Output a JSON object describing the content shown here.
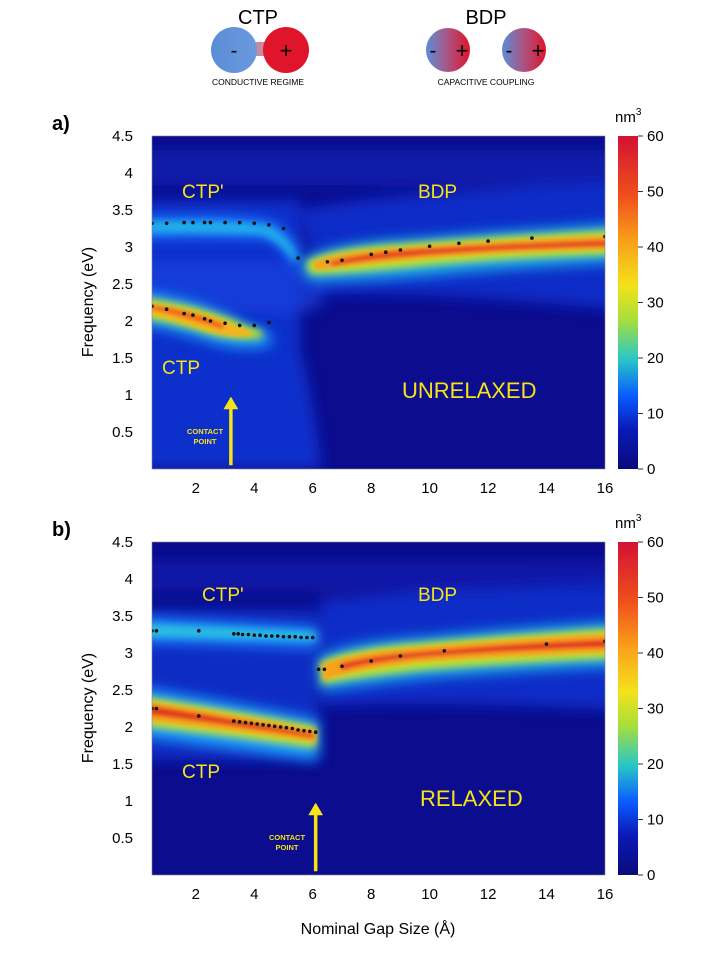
{
  "header": {
    "ctp": {
      "title": "CTP",
      "minus": "-",
      "plus": "+",
      "caption": "CONDUCTIVE REGIME"
    },
    "bdp": {
      "title": "BDP",
      "minus": "-",
      "plus": "+",
      "caption": "CAPACITIVE COUPLING"
    }
  },
  "colors": {
    "negative_charge": "#5b8dd6",
    "positive_charge": "#e0142a",
    "annotation": "#f7e416",
    "marker": "#111111"
  },
  "chart_data": [
    {
      "type": "heatmap",
      "panel_label": "a)",
      "title": "",
      "xlabel": "",
      "ylabel": "Frequency (eV)",
      "xlim": [
        0.5,
        16
      ],
      "ylim": [
        0,
        4.5
      ],
      "xticks": [
        2,
        4,
        6,
        8,
        10,
        12,
        14,
        16
      ],
      "yticks": [
        0.5,
        1,
        1.5,
        2,
        2.5,
        3,
        3.5,
        4,
        4.5
      ],
      "colorbar": {
        "unit": "nm",
        "unit_exponent": "3",
        "min": 0,
        "max": 60,
        "ticks": [
          0,
          10,
          20,
          30,
          40,
          50,
          60
        ]
      },
      "regime_labels": {
        "ctp_prime": "CTP'",
        "bdp": "BDP",
        "ctp": "CTP",
        "state": "UNRELAXED"
      },
      "contact_point": {
        "label_line1": "CONTACT",
        "label_line2": "POINT",
        "x": 3.2
      },
      "series": [
        {
          "points": [
            [
              0.5,
              3.32
            ],
            [
              1,
              3.32
            ],
            [
              1.6,
              3.33
            ],
            [
              1.9,
              3.33
            ],
            [
              2.3,
              3.33
            ],
            [
              2.5,
              3.33
            ],
            [
              3,
              3.33
            ],
            [
              3.5,
              3.33
            ],
            [
              4,
              3.32
            ],
            [
              4.5,
              3.3
            ],
            [
              5,
              3.25
            ],
            [
              5.5,
              2.85
            ],
            [
              6.5,
              2.8
            ],
            [
              7,
              2.82
            ],
            [
              8,
              2.9
            ],
            [
              8.5,
              2.93
            ],
            [
              9,
              2.96
            ],
            [
              10,
              3.01
            ],
            [
              11,
              3.05
            ],
            [
              12,
              3.08
            ],
            [
              13.5,
              3.12
            ],
            [
              16,
              3.14
            ]
          ]
        },
        {
          "points": [
            [
              0.5,
              2.2
            ],
            [
              1,
              2.16
            ],
            [
              1.6,
              2.1
            ],
            [
              1.9,
              2.08
            ],
            [
              2.3,
              2.03
            ],
            [
              2.5,
              2.0
            ],
            [
              3,
              1.97
            ],
            [
              3.5,
              1.94
            ],
            [
              4,
              1.94
            ],
            [
              4.5,
              1.98
            ]
          ]
        }
      ]
    },
    {
      "type": "heatmap",
      "panel_label": "b)",
      "title": "",
      "xlabel": "Nominal Gap Size (Å)",
      "ylabel": "Frequency (eV)",
      "xlim": [
        0.5,
        16
      ],
      "ylim": [
        0,
        4.5
      ],
      "xticks": [
        2,
        4,
        6,
        8,
        10,
        12,
        14,
        16
      ],
      "yticks": [
        0.5,
        1,
        1.5,
        2,
        2.5,
        3,
        3.5,
        4,
        4.5
      ],
      "colorbar": {
        "unit": "nm",
        "unit_exponent": "3",
        "min": 0,
        "max": 60,
        "ticks": [
          0,
          10,
          20,
          30,
          40,
          50,
          60
        ]
      },
      "regime_labels": {
        "ctp_prime": "CTP'",
        "bdp": "BDP",
        "ctp": "CTP",
        "state": "RELAXED"
      },
      "contact_point": {
        "label_line1": "CONTACT",
        "label_line2": "POINT",
        "x": 6.1
      },
      "series": [
        {
          "points": [
            [
              0.5,
              3.3
            ],
            [
              0.65,
              3.3
            ],
            [
              2.1,
              3.3
            ],
            [
              3.3,
              3.26
            ],
            [
              3.45,
              3.26
            ],
            [
              3.6,
              3.25
            ],
            [
              3.8,
              3.25
            ],
            [
              4,
              3.24
            ],
            [
              4.2,
              3.24
            ],
            [
              4.4,
              3.23
            ],
            [
              4.6,
              3.23
            ],
            [
              4.8,
              3.23
            ],
            [
              5,
              3.22
            ],
            [
              5.2,
              3.22
            ],
            [
              5.4,
              3.22
            ],
            [
              5.6,
              3.21
            ],
            [
              5.8,
              3.21
            ],
            [
              6,
              3.21
            ],
            [
              6.2,
              2.78
            ],
            [
              6.4,
              2.78
            ],
            [
              7,
              2.82
            ],
            [
              8,
              2.89
            ],
            [
              9,
              2.96
            ],
            [
              10.5,
              3.03
            ],
            [
              14,
              3.12
            ],
            [
              16,
              3.16
            ]
          ]
        },
        {
          "points": [
            [
              0.5,
              2.25
            ],
            [
              0.65,
              2.25
            ],
            [
              2.1,
              2.15
            ],
            [
              3.3,
              2.08
            ],
            [
              3.5,
              2.07
            ],
            [
              3.7,
              2.06
            ],
            [
              3.9,
              2.05
            ],
            [
              4.1,
              2.04
            ],
            [
              4.3,
              2.03
            ],
            [
              4.5,
              2.02
            ],
            [
              4.7,
              2.01
            ],
            [
              4.9,
              2.0
            ],
            [
              5.1,
              1.99
            ],
            [
              5.3,
              1.98
            ],
            [
              5.5,
              1.96
            ],
            [
              5.7,
              1.95
            ],
            [
              5.9,
              1.94
            ],
            [
              6.1,
              1.93
            ]
          ]
        }
      ]
    }
  ]
}
